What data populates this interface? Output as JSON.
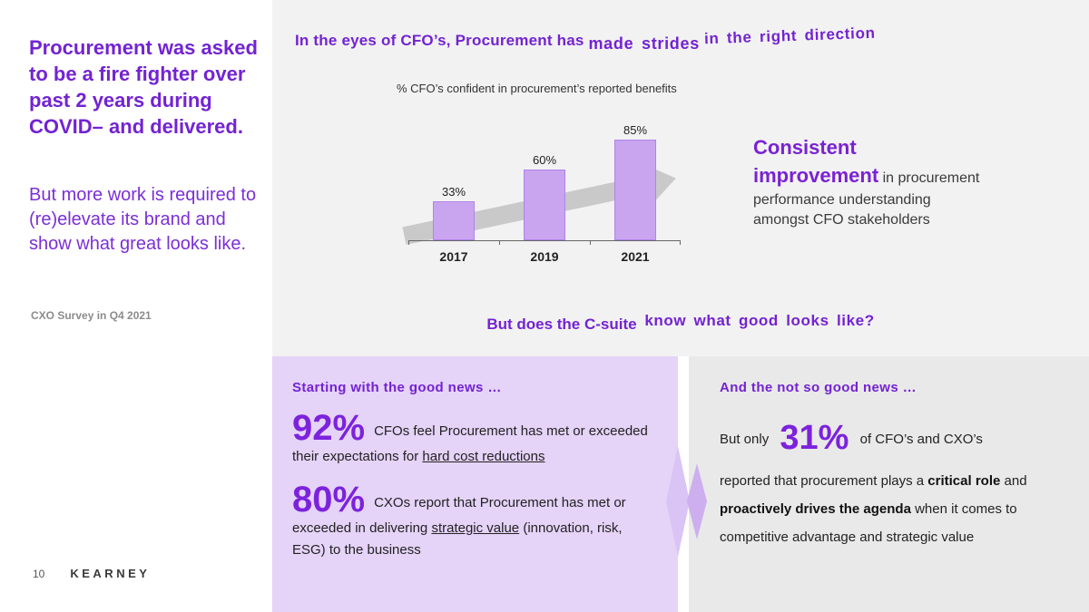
{
  "sidebar": {
    "headline": "Procurement was asked to be a fire fighter over past 2 years during COVID– and delivered.",
    "subheadline": "But more work is required to (re)elevate its brand and show what great looks like.",
    "source": "CXO Survey in Q4 2021"
  },
  "footer": {
    "page_number": "10",
    "brand": "KEARNEY"
  },
  "main": {
    "title": {
      "part1": "In the eyes of CFO’s, Procurement has",
      "part2": "made strides",
      "part3": "in the right direction"
    },
    "insight": {
      "highlight": "Consistent improvement",
      "connector": " in ",
      "rest": "procurement performance understanding amongst CFO stakeholders"
    },
    "question": {
      "part1": "But does the C-suite",
      "part2": "know what good looks like?"
    },
    "good_news": {
      "heading": "Starting with the good news …",
      "stat1": {
        "value": "92%",
        "text": "CFOs feel Procurement has met or exceeded their expectations for ",
        "underline": "hard cost reductions"
      },
      "stat2": {
        "value": "80%",
        "text": "CXOs report that Procurement has met or exceeded in delivering ",
        "underline": "strategic value",
        "tail": " (innovation, risk, ESG) to the business"
      }
    },
    "bad_news": {
      "heading": "And the not so good news …",
      "lead": "But only ",
      "value": "31%",
      "lead_after": " of CFO’s and CXO’s",
      "body1": "reported that procurement plays a ",
      "strong1": "critical role",
      "body2": " and ",
      "strong2": "proactively drives the agenda",
      "body3": " when it comes to competitive advantage and strategic value"
    }
  },
  "chart_data": {
    "type": "bar",
    "title": "% CFO’s confident in procurement’s reported benefits",
    "categories": [
      "2017",
      "2019",
      "2021"
    ],
    "values": [
      33,
      60,
      85
    ],
    "value_labels": [
      "33%",
      "60%",
      "85%"
    ],
    "ylim": [
      0,
      100
    ],
    "legend": "none",
    "grid": false,
    "annotation": "upward gray trend arrow behind bars"
  },
  "colors": {
    "brand_purple": "#7323d2",
    "big_number_purple": "#7d22dc",
    "bar_fill": "#c9a5f0",
    "panel_purple": "#e5d3f8",
    "panel_gray": "#e9e9e9",
    "background_gray": "#f2f2f2",
    "arrow_gray": "#c9c9c9"
  }
}
